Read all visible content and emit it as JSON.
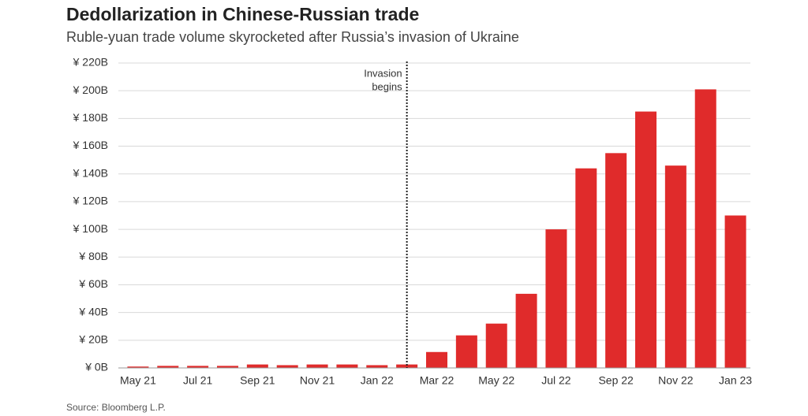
{
  "chart_data": {
    "type": "bar",
    "title": "Dedollarization in Chinese-Russian trade",
    "subtitle": "Ruble-yuan trade volume skyrocketed after Russia’s invasion of Ukraine",
    "source": "Source: Bloomberg L.P.",
    "annotation": [
      "Invasion",
      "begins"
    ],
    "categories": [
      "May 21",
      null,
      "Jul 21",
      null,
      "Sep 21",
      null,
      "Nov 21",
      null,
      "Jan 22",
      null,
      "Mar 22",
      null,
      "May 22",
      null,
      "Jul 22",
      null,
      "Sep 22",
      null,
      "Nov 22",
      null,
      "Jan 23"
    ],
    "values": [
      1,
      1.5,
      1.5,
      1.5,
      2.5,
      2,
      2.5,
      2.5,
      2,
      2.5,
      11.5,
      23.5,
      32,
      53.5,
      100,
      144,
      155,
      185,
      146,
      201,
      110
    ],
    "color": "#e02b2b",
    "ylim": [
      0,
      220
    ],
    "yticks": [
      {
        "value": 0,
        "label": "¥ 0B"
      },
      {
        "value": 20,
        "label": "¥ 20B"
      },
      {
        "value": 40,
        "label": "¥ 40B"
      },
      {
        "value": 60,
        "label": "¥ 60B"
      },
      {
        "value": 80,
        "label": "¥ 80B"
      },
      {
        "value": 100,
        "label": "¥ 100B"
      },
      {
        "value": 120,
        "label": "¥ 120B"
      },
      {
        "value": 140,
        "label": "¥ 140B"
      },
      {
        "value": 160,
        "label": "¥ 160B"
      },
      {
        "value": 180,
        "label": "¥ 180B"
      },
      {
        "value": 200,
        "label": "¥ 200B"
      },
      {
        "value": 220,
        "label": "¥ 220B"
      }
    ],
    "grid": true
  }
}
